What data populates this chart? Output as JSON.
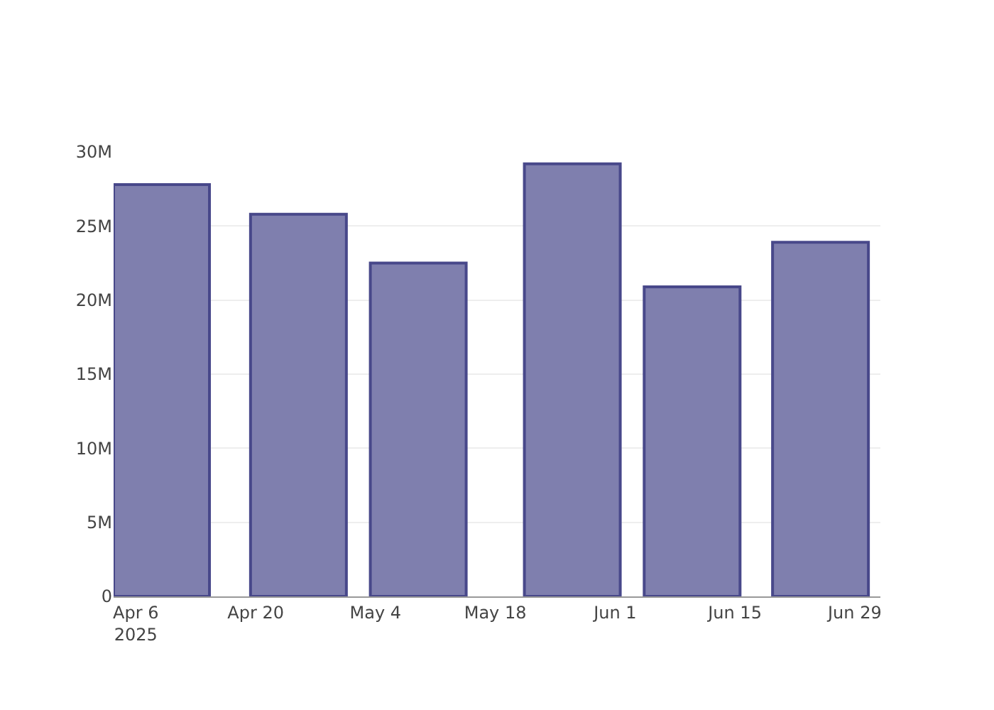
{
  "chart_data": {
    "type": "bar",
    "x": [
      "2025-04-09",
      "2025-04-25",
      "2025-05-09",
      "2025-05-27",
      "2025-06-10",
      "2025-06-25"
    ],
    "values": [
      27800000,
      25800000,
      22500000,
      29200000,
      20900000,
      23900000
    ],
    "color": "#7f7fae",
    "xlim": [
      "2025-04-03T09:36",
      "2025-07-02"
    ],
    "xticks": [
      {
        "value": "2025-04-06",
        "label": "Apr 6\n2025"
      },
      {
        "value": "2025-04-20",
        "label": "Apr 20"
      },
      {
        "value": "2025-05-04",
        "label": "May 4"
      },
      {
        "value": "2025-05-18",
        "label": "May 18"
      },
      {
        "value": "2025-06-01",
        "label": "Jun 1"
      },
      {
        "value": "2025-06-15",
        "label": "Jun 15"
      },
      {
        "value": "2025-06-29",
        "label": "Jun 29"
      }
    ],
    "ylim": [
      0,
      30000000
    ],
    "yticks": [
      {
        "value": 0,
        "label": "0"
      },
      {
        "value": 5000000,
        "label": "5M"
      },
      {
        "value": 10000000,
        "label": "10M"
      },
      {
        "value": 15000000,
        "label": "15M"
      },
      {
        "value": 20000000,
        "label": "20M"
      },
      {
        "value": 25000000,
        "label": "25M"
      },
      {
        "value": 30000000,
        "label": "30M"
      }
    ],
    "grid": "y"
  }
}
